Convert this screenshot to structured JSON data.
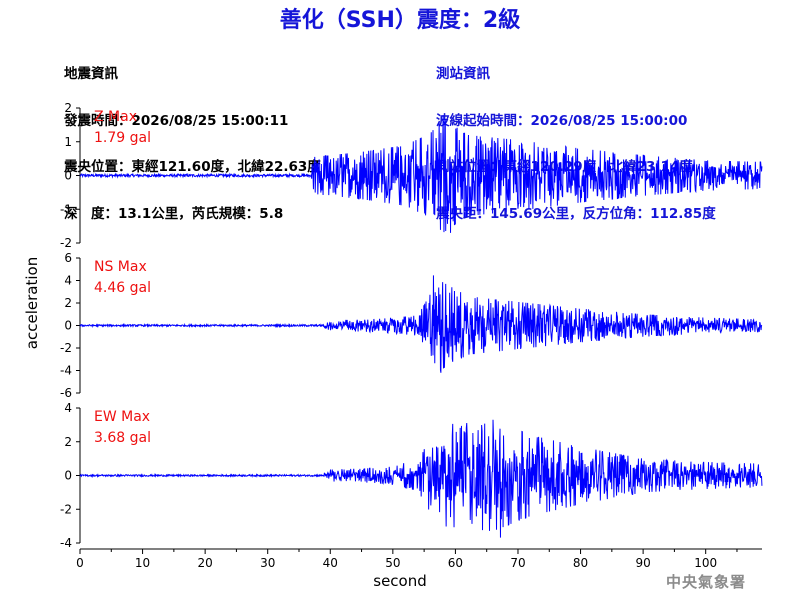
{
  "title": "善化（SSH）震度：2級",
  "quake_info": {
    "heading": "地震資訊",
    "origin_time": "發震時間：2026/08/25 15:00:11",
    "epicenter": "震央位置：東經121.60度，北緯22.63度",
    "depth_magnitude": "深　度：13.1公里，芮氏規模：5.8"
  },
  "station_info": {
    "heading": "測站資訊",
    "start_time": "波線起始時間：2026/08/25 15:00:00",
    "location": "測站位置：東經120.29度，北緯23.14度",
    "distance": "震央距：145.69公里，反方位角：112.85度"
  },
  "footer": "中央氣象署",
  "chart_data": {
    "type": "line",
    "xlabel": "second",
    "ylabel": "acceleration",
    "xlim": [
      0,
      109
    ],
    "xticks": [
      0,
      10,
      20,
      30,
      40,
      50,
      60,
      70,
      80,
      90,
      100
    ],
    "line_color": "#0000ff",
    "label_color": "#ee1111",
    "panels": [
      {
        "name": "Z",
        "max_label": "Z Max",
        "max_value": "1.79 gal",
        "ylim": [
          -2,
          2
        ],
        "yticks": [
          -2,
          -1,
          0,
          1,
          2
        ],
        "peak": 1.79,
        "trough": -1.7,
        "noise": 0.04,
        "onset": 37.0,
        "peak_time": 58.0,
        "envelope": [
          [
            0,
            0.04
          ],
          [
            36.5,
            0.04
          ],
          [
            37.5,
            0.55
          ],
          [
            45,
            0.7
          ],
          [
            52,
            0.9
          ],
          [
            56,
            1.25
          ],
          [
            58,
            1.7
          ],
          [
            62,
            1.2
          ],
          [
            70,
            1.05
          ],
          [
            80,
            0.8
          ],
          [
            90,
            0.6
          ],
          [
            100,
            0.45
          ],
          [
            109,
            0.4
          ]
        ]
      },
      {
        "name": "NS",
        "max_label": "NS Max",
        "max_value": "4.46 gal",
        "ylim": [
          -6,
          6
        ],
        "yticks": [
          -6,
          -4,
          -2,
          0,
          2,
          4,
          6
        ],
        "peak": 4.46,
        "trough": -4.2,
        "noise": 0.08,
        "onset": 39.0,
        "peak_time": 56.5,
        "envelope": [
          [
            0,
            0.08
          ],
          [
            38.5,
            0.08
          ],
          [
            40,
            0.45
          ],
          [
            48,
            0.6
          ],
          [
            54,
            0.9
          ],
          [
            56,
            2.8
          ],
          [
            57.5,
            4.0
          ],
          [
            62,
            2.6
          ],
          [
            70,
            2.1
          ],
          [
            80,
            1.5
          ],
          [
            90,
            1.0
          ],
          [
            100,
            0.7
          ],
          [
            109,
            0.55
          ]
        ]
      },
      {
        "name": "EW",
        "max_label": "EW Max",
        "max_value": "3.68 gal",
        "ylim": [
          -4,
          4
        ],
        "yticks": [
          -4,
          -2,
          0,
          2,
          4
        ],
        "peak": 3.3,
        "trough": -3.68,
        "noise": 0.05,
        "onset": 39.0,
        "peak_time": 66.0,
        "envelope": [
          [
            0,
            0.05
          ],
          [
            38.5,
            0.05
          ],
          [
            40,
            0.35
          ],
          [
            48,
            0.45
          ],
          [
            54,
            0.9
          ],
          [
            56,
            2.2
          ],
          [
            58,
            3.0
          ],
          [
            66,
            3.3
          ],
          [
            72,
            2.4
          ],
          [
            80,
            1.7
          ],
          [
            90,
            1.0
          ],
          [
            100,
            0.8
          ],
          [
            109,
            0.7
          ]
        ]
      }
    ]
  }
}
